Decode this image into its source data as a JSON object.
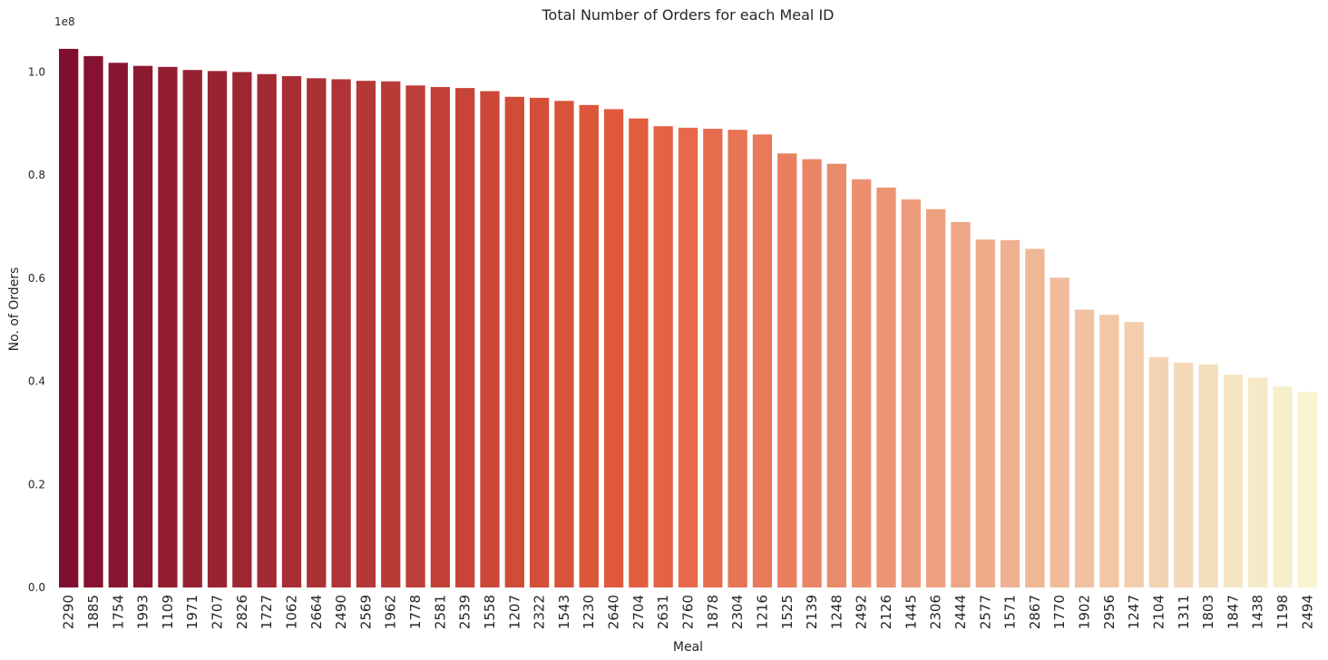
{
  "chart_data": {
    "type": "bar",
    "title": "Total Number of Orders for each Meal ID",
    "xlabel": "Meal",
    "ylabel": "No. of Orders",
    "y_scale_label": "1e8",
    "ylim": [
      0,
      1.08
    ],
    "yticks": [
      0.0,
      0.2,
      0.4,
      0.6,
      0.8,
      1.0
    ],
    "ytick_labels": [
      "0.0",
      "0.2",
      "0.4",
      "0.6",
      "0.8",
      "1.0"
    ],
    "grid": false,
    "categories": [
      "2290",
      "1885",
      "1754",
      "1993",
      "1109",
      "1971",
      "2707",
      "2826",
      "1727",
      "1062",
      "2664",
      "2490",
      "2569",
      "1962",
      "1778",
      "2581",
      "2539",
      "1558",
      "1207",
      "2322",
      "1543",
      "1230",
      "2640",
      "2704",
      "2631",
      "2760",
      "1878",
      "2304",
      "1216",
      "1525",
      "2139",
      "1248",
      "2492",
      "2126",
      "1445",
      "2306",
      "2444",
      "2577",
      "1571",
      "2867",
      "1770",
      "1902",
      "2956",
      "1247",
      "2104",
      "1311",
      "1803",
      "1847",
      "1438",
      "1198",
      "2494"
    ],
    "values": [
      1.045,
      1.031,
      1.018,
      1.012,
      1.01,
      1.004,
      1.002,
      1.0,
      0.996,
      0.992,
      0.988,
      0.986,
      0.983,
      0.982,
      0.974,
      0.971,
      0.969,
      0.963,
      0.952,
      0.95,
      0.944,
      0.936,
      0.928,
      0.91,
      0.895,
      0.892,
      0.89,
      0.888,
      0.879,
      0.842,
      0.831,
      0.822,
      0.792,
      0.776,
      0.753,
      0.734,
      0.709,
      0.675,
      0.674,
      0.657,
      0.601,
      0.539,
      0.529,
      0.515,
      0.447,
      0.436,
      0.433,
      0.413,
      0.407,
      0.39,
      0.379
    ],
    "palette_start": "#800f2f",
    "palette_mid": "#e35b3c",
    "palette_end": "#f8f4d2"
  }
}
